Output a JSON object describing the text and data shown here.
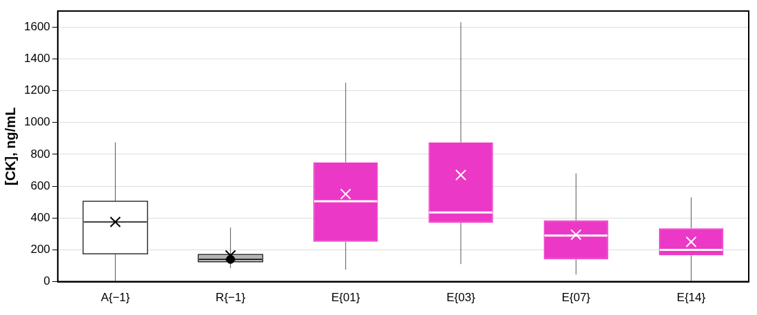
{
  "chart_data": {
    "type": "box",
    "ylabel": "[CK], ng/mL",
    "categories": [
      "A{−1}",
      "R{−1}",
      "E{01}",
      "E{03}",
      "E{07}",
      "E{14}"
    ],
    "colors": [
      "#ffffff",
      "#b3b3b3",
      "#ec38c6",
      "#ec38c6",
      "#ec38c6",
      "#ec38c6"
    ],
    "boxes": [
      {
        "low": 0,
        "q1": 175,
        "median": 375,
        "q3": 505,
        "high": 875,
        "mean": 375
      },
      {
        "low": 85,
        "q1": 125,
        "median": 140,
        "q3": 170,
        "high": 340,
        "mean": 165,
        "outliers": [
          140
        ]
      },
      {
        "low": 75,
        "q1": 250,
        "median": 505,
        "q3": 750,
        "high": 1250,
        "mean": 550
      },
      {
        "low": 110,
        "q1": 370,
        "median": 435,
        "q3": 875,
        "high": 1630,
        "mean": 670
      },
      {
        "low": 45,
        "q1": 140,
        "median": 290,
        "q3": 385,
        "high": 680,
        "mean": 295
      },
      {
        "low": 0,
        "q1": 165,
        "median": 200,
        "q3": 335,
        "high": 530,
        "mean": 250
      }
    ],
    "ylim": [
      0,
      1700
    ],
    "yticks": [
      0,
      200,
      400,
      600,
      800,
      1000,
      1200,
      1400,
      1600
    ],
    "grid": "y"
  }
}
